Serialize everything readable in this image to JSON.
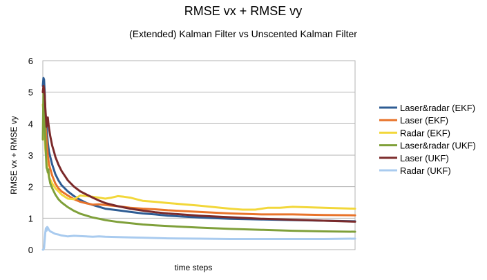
{
  "chart_data": {
    "type": "line",
    "title": "RMSE vx + RMSE vy",
    "subtitle": "(Extended) Kalman Filter vs Unscented Kalman Filter",
    "xlabel": "time steps",
    "ylabel": "RMSE vx + RMSE vy",
    "ylim": [
      0,
      6
    ],
    "yticks": [
      "0",
      "1",
      "2",
      "3",
      "4",
      "5",
      "6"
    ],
    "xlim": [
      0,
      500
    ],
    "grid": "horizontal",
    "legend_position": "right",
    "series": [
      {
        "name": "Laser&radar (EKF)",
        "color": "#2E5C93",
        "x": [
          0,
          1,
          2,
          3,
          4,
          6,
          8,
          10,
          15,
          20,
          25,
          30,
          40,
          50,
          60,
          70,
          80,
          90,
          100,
          120,
          140,
          160,
          180,
          200,
          250,
          300,
          350,
          400,
          450,
          500
        ],
        "y": [
          5.2,
          5.45,
          5.4,
          5.0,
          4.4,
          3.9,
          3.4,
          3.1,
          2.7,
          2.4,
          2.2,
          2.05,
          1.85,
          1.7,
          1.58,
          1.48,
          1.42,
          1.36,
          1.3,
          1.25,
          1.2,
          1.15,
          1.12,
          1.08,
          1.02,
          0.98,
          0.96,
          0.94,
          0.92,
          0.9
        ]
      },
      {
        "name": "Laser (EKF)",
        "color": "#E8732A",
        "x": [
          0,
          1,
          2,
          3,
          4,
          6,
          8,
          10,
          15,
          20,
          25,
          30,
          40,
          50,
          60,
          70,
          80,
          90,
          100,
          120,
          140,
          160,
          180,
          200,
          250,
          300,
          350,
          400,
          450,
          500
        ],
        "y": [
          5.0,
          5.1,
          4.9,
          4.5,
          4.0,
          3.5,
          3.0,
          2.7,
          2.35,
          2.1,
          1.95,
          1.85,
          1.72,
          1.6,
          1.52,
          1.47,
          1.43,
          1.44,
          1.42,
          1.38,
          1.33,
          1.3,
          1.28,
          1.25,
          1.2,
          1.15,
          1.12,
          1.12,
          1.1,
          1.09
        ]
      },
      {
        "name": "Radar (EKF)",
        "color": "#F2D73A",
        "x": [
          0,
          1,
          2,
          3,
          4,
          6,
          8,
          10,
          15,
          20,
          25,
          30,
          40,
          50,
          60,
          70,
          80,
          90,
          100,
          110,
          120,
          130,
          140,
          150,
          160,
          180,
          200,
          250,
          300,
          320,
          340,
          360,
          380,
          400,
          450,
          500
        ],
        "y": [
          4.6,
          4.4,
          4.0,
          3.6,
          3.2,
          2.8,
          2.5,
          2.3,
          2.1,
          1.95,
          1.85,
          1.75,
          1.62,
          1.6,
          1.72,
          1.7,
          1.68,
          1.65,
          1.62,
          1.65,
          1.7,
          1.68,
          1.65,
          1.6,
          1.55,
          1.52,
          1.48,
          1.4,
          1.3,
          1.27,
          1.27,
          1.33,
          1.33,
          1.36,
          1.33,
          1.3
        ]
      },
      {
        "name": "Laser&radar (UKF)",
        "color": "#7FA03A",
        "x": [
          0,
          1,
          2,
          3,
          4,
          5,
          6,
          7,
          8,
          9,
          10,
          12,
          15,
          20,
          25,
          30,
          40,
          50,
          60,
          70,
          80,
          90,
          100,
          120,
          140,
          160,
          180,
          200,
          250,
          300,
          350,
          400,
          450,
          500
        ],
        "y": [
          3.5,
          5.1,
          4.9,
          4.2,
          3.5,
          3.0,
          2.6,
          2.55,
          2.45,
          2.55,
          2.3,
          2.1,
          1.95,
          1.75,
          1.6,
          1.5,
          1.35,
          1.23,
          1.14,
          1.08,
          1.02,
          0.98,
          0.94,
          0.88,
          0.84,
          0.8,
          0.77,
          0.75,
          0.7,
          0.66,
          0.63,
          0.6,
          0.58,
          0.57
        ]
      },
      {
        "name": "Laser (UKF)",
        "color": "#7B2A2A",
        "x": [
          0,
          1,
          2,
          3,
          4,
          5,
          6,
          7,
          8,
          9,
          10,
          12,
          15,
          18,
          20,
          25,
          30,
          40,
          50,
          60,
          70,
          80,
          90,
          100,
          120,
          140,
          160,
          180,
          200,
          250,
          300,
          350,
          400,
          450,
          500
        ],
        "y": [
          5.0,
          5.2,
          5.1,
          4.9,
          4.5,
          4.2,
          3.9,
          4.1,
          4.2,
          4.0,
          3.85,
          3.6,
          3.3,
          3.1,
          2.95,
          2.7,
          2.5,
          2.2,
          2.0,
          1.85,
          1.75,
          1.65,
          1.56,
          1.48,
          1.38,
          1.3,
          1.24,
          1.19,
          1.15,
          1.08,
          1.03,
          0.98,
          0.95,
          0.92,
          0.89
        ]
      },
      {
        "name": "Radar (UKF)",
        "color": "#A9CBEF",
        "x": [
          0,
          1,
          2,
          3,
          4,
          5,
          6,
          7,
          8,
          9,
          10,
          12,
          15,
          18,
          20,
          25,
          30,
          40,
          50,
          60,
          70,
          80,
          90,
          100,
          120,
          140,
          160,
          180,
          200,
          250,
          300,
          350,
          400,
          450,
          500
        ],
        "y": [
          0.0,
          0.0,
          0.05,
          0.3,
          0.55,
          0.68,
          0.6,
          0.72,
          0.7,
          0.66,
          0.62,
          0.58,
          0.55,
          0.52,
          0.5,
          0.48,
          0.45,
          0.42,
          0.44,
          0.43,
          0.42,
          0.41,
          0.42,
          0.41,
          0.4,
          0.39,
          0.38,
          0.37,
          0.36,
          0.35,
          0.34,
          0.34,
          0.34,
          0.34,
          0.35
        ]
      }
    ]
  }
}
